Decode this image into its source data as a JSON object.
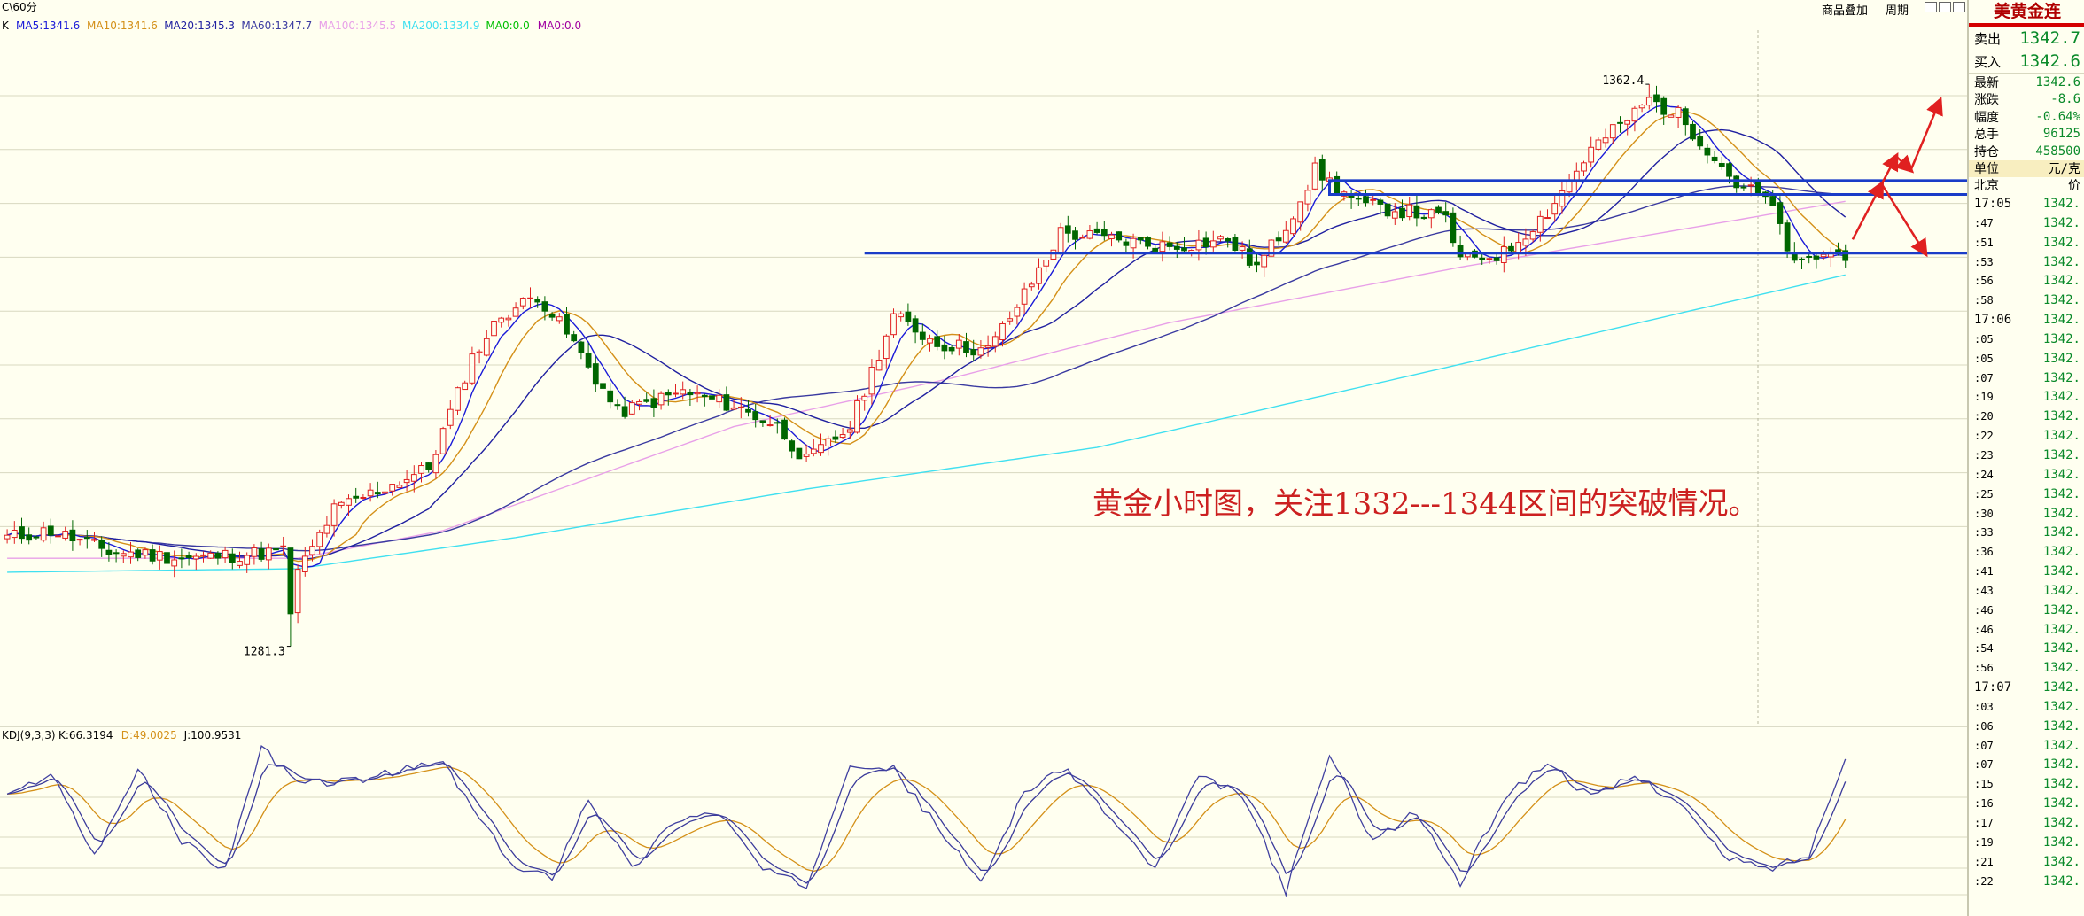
{
  "window": {
    "period_title": "C\\60分",
    "buttons": [
      "商品叠加",
      "周期"
    ]
  },
  "ma_legend": {
    "k": "K",
    "items": [
      {
        "text": "MA5:1341.6",
        "color": "#1a1ad8"
      },
      {
        "text": "MA10:1341.6",
        "color": "#d49018"
      },
      {
        "text": "MA20:1345.3",
        "color": "#2020a0"
      },
      {
        "text": "MA60:1347.7",
        "color": "#3a3aa0"
      },
      {
        "text": "MA100:1345.5",
        "color": "#e8a0e8"
      },
      {
        "text": "MA200:1334.9",
        "color": "#40e0f0"
      },
      {
        "text": "MA0:0.0",
        "color": "#00c000"
      },
      {
        "text": "MA0:0.0",
        "color": "#a000a0"
      }
    ]
  },
  "kdj_legend": {
    "name": "KDJ(9,3,3)",
    "items": [
      {
        "text": "K:66.3194",
        "color": "#000000"
      },
      {
        "text": "D:49.0025",
        "color": "#d49018"
      },
      {
        "text": "J:100.9531",
        "color": "#000000"
      }
    ]
  },
  "annotation": {
    "text": "黄金小时图，关注1332---1344区间的突破情况。",
    "color": "#cc2020"
  },
  "colors": {
    "up": "#e02020",
    "down": "#006600",
    "grid": "#d8d8c0",
    "box": "#1a3cc8",
    "arrow": "#e02020",
    "kdj_k": "#3a3a9a",
    "kdj_d": "#d49018",
    "kdj_j": "#4040a0"
  },
  "side": {
    "title": "美黄金连",
    "quotes": [
      {
        "label": "卖出",
        "value": "1342.7"
      },
      {
        "label": "买入",
        "value": "1342.6"
      }
    ],
    "stats": [
      {
        "label": "最新",
        "value": "1342.6"
      },
      {
        "label": "涨跌",
        "value": "-8.6"
      },
      {
        "label": "幅度",
        "value": "-0.64%"
      },
      {
        "label": "总手",
        "value": "96125"
      },
      {
        "label": "持仓",
        "value": "458500"
      },
      {
        "label": "单位",
        "value": "元/克"
      }
    ],
    "tick_header": {
      "left": "北京",
      "right": "价"
    },
    "ticks": [
      {
        "t": "17:05",
        "p": "1342."
      },
      {
        "t": ":47",
        "p": "1342."
      },
      {
        "t": ":51",
        "p": "1342."
      },
      {
        "t": ":53",
        "p": "1342."
      },
      {
        "t": ":56",
        "p": "1342."
      },
      {
        "t": ":58",
        "p": "1342."
      },
      {
        "t": "17:06",
        "p": "1342."
      },
      {
        "t": ":05",
        "p": "1342."
      },
      {
        "t": ":05",
        "p": "1342."
      },
      {
        "t": ":07",
        "p": "1342."
      },
      {
        "t": ":19",
        "p": "1342."
      },
      {
        "t": ":20",
        "p": "1342."
      },
      {
        "t": ":22",
        "p": "1342."
      },
      {
        "t": ":23",
        "p": "1342."
      },
      {
        "t": ":24",
        "p": "1342."
      },
      {
        "t": ":25",
        "p": "1342."
      },
      {
        "t": ":30",
        "p": "1342."
      },
      {
        "t": ":33",
        "p": "1342."
      },
      {
        "t": ":36",
        "p": "1342."
      },
      {
        "t": ":41",
        "p": "1342."
      },
      {
        "t": ":43",
        "p": "1342."
      },
      {
        "t": ":46",
        "p": "1342."
      },
      {
        "t": ":46",
        "p": "1342."
      },
      {
        "t": ":54",
        "p": "1342."
      },
      {
        "t": ":56",
        "p": "1342."
      },
      {
        "t": "17:07",
        "p": "1342."
      },
      {
        "t": ":03",
        "p": "1342."
      },
      {
        "t": ":06",
        "p": "1342."
      },
      {
        "t": ":07",
        "p": "1342."
      },
      {
        "t": ":07",
        "p": "1342."
      },
      {
        "t": ":15",
        "p": "1342."
      },
      {
        "t": ":16",
        "p": "1342."
      },
      {
        "t": ":17",
        "p": "1342."
      },
      {
        "t": ":19",
        "p": "1342."
      },
      {
        "t": ":21",
        "p": "1342."
      },
      {
        "t": ":22",
        "p": "1342."
      }
    ]
  },
  "chart_data": {
    "type": "candlestick",
    "title": "",
    "xlabel": "",
    "ylabel": "",
    "ylim": [
      1270,
      1372
    ],
    "annotations": [
      {
        "text": "1362.4",
        "value": 1362.4,
        "bar": 226,
        "kind": "high"
      },
      {
        "text": "1281.3",
        "value": 1281.3,
        "bar": 39,
        "kind": "low"
      }
    ],
    "keypoints": [
      {
        "bar": 0,
        "close": 1297
      },
      {
        "bar": 6,
        "close": 1298
      },
      {
        "bar": 14,
        "close": 1295
      },
      {
        "bar": 25,
        "close": 1294
      },
      {
        "bar": 38,
        "close": 1295
      },
      {
        "bar": 39,
        "close": 1290
      },
      {
        "bar": 45,
        "close": 1301
      },
      {
        "bar": 58,
        "close": 1307
      },
      {
        "bar": 64,
        "close": 1323
      },
      {
        "bar": 68,
        "close": 1329
      },
      {
        "bar": 73,
        "close": 1332
      },
      {
        "bar": 78,
        "close": 1325
      },
      {
        "bar": 84,
        "close": 1315
      },
      {
        "bar": 93,
        "close": 1318
      },
      {
        "bar": 100,
        "close": 1316
      },
      {
        "bar": 106,
        "close": 1313
      },
      {
        "bar": 110,
        "close": 1308
      },
      {
        "bar": 116,
        "close": 1313
      },
      {
        "bar": 122,
        "close": 1329
      },
      {
        "bar": 128,
        "close": 1325
      },
      {
        "bar": 135,
        "close": 1324
      },
      {
        "bar": 140,
        "close": 1332
      },
      {
        "bar": 145,
        "close": 1341
      },
      {
        "bar": 152,
        "close": 1340
      },
      {
        "bar": 160,
        "close": 1339
      },
      {
        "bar": 168,
        "close": 1340
      },
      {
        "bar": 172,
        "close": 1336
      },
      {
        "bar": 176,
        "close": 1342
      },
      {
        "bar": 180,
        "close": 1350
      },
      {
        "bar": 186,
        "close": 1345
      },
      {
        "bar": 193,
        "close": 1344
      },
      {
        "bar": 198,
        "close": 1343
      },
      {
        "bar": 200,
        "close": 1337
      },
      {
        "bar": 206,
        "close": 1338
      },
      {
        "bar": 212,
        "close": 1344
      },
      {
        "bar": 218,
        "close": 1353
      },
      {
        "bar": 226,
        "close": 1360
      },
      {
        "bar": 230,
        "close": 1358
      },
      {
        "bar": 235,
        "close": 1352
      },
      {
        "bar": 238,
        "close": 1348
      },
      {
        "bar": 242,
        "close": 1346
      },
      {
        "bar": 244,
        "close": 1342
      },
      {
        "bar": 246,
        "close": 1336
      },
      {
        "bar": 250,
        "close": 1338
      },
      {
        "bar": 253,
        "close": 1338
      }
    ],
    "series": [
      {
        "name": "MA5",
        "value": 1341.6,
        "color": "#1a1ad8"
      },
      {
        "name": "MA10",
        "value": 1341.6,
        "color": "#d49018"
      },
      {
        "name": "MA20",
        "value": 1345.3,
        "color": "#2020a0"
      },
      {
        "name": "MA60",
        "value": 1347.7,
        "color": "#3a3aa0"
      },
      {
        "name": "MA100",
        "value": 1345.5,
        "color": "#e8a0e8"
      },
      {
        "name": "MA200",
        "value": 1334.9,
        "color": "#40e0f0"
      }
    ],
    "ma200_path": [
      {
        "bar": 0,
        "value": 1292
      },
      {
        "bar": 40,
        "value": 1292.5
      },
      {
        "bar": 70,
        "value": 1297
      },
      {
        "bar": 110,
        "value": 1304
      },
      {
        "bar": 150,
        "value": 1310
      },
      {
        "bar": 200,
        "value": 1322
      },
      {
        "bar": 253,
        "value": 1334.9
      }
    ],
    "ma100_path": [
      {
        "bar": 0,
        "value": 1294
      },
      {
        "bar": 40,
        "value": 1294
      },
      {
        "bar": 60,
        "value": 1298
      },
      {
        "bar": 100,
        "value": 1313
      },
      {
        "bar": 130,
        "value": 1320
      },
      {
        "bar": 160,
        "value": 1328
      },
      {
        "bar": 200,
        "value": 1336
      },
      {
        "bar": 253,
        "value": 1345.5
      }
    ],
    "levels": [
      {
        "name": "support",
        "value": 1338
      },
      {
        "name": "box_top",
        "value": 1348.5
      },
      {
        "name": "box_bottom",
        "value": 1346.5
      }
    ],
    "arrows": [
      {
        "from_bar": 254,
        "from_value": 1340,
        "to_bar": 258,
        "to_value": 1348
      },
      {
        "from_bar": 258,
        "from_value": 1348,
        "to_bar": 260,
        "to_value": 1352
      },
      {
        "from_bar": 260,
        "from_value": 1352,
        "to_bar": 262,
        "to_value": 1350
      },
      {
        "from_bar": 262,
        "from_value": 1350,
        "to_bar": 266,
        "to_value": 1360
      },
      {
        "from_bar": 258,
        "from_value": 1348,
        "to_bar": 264,
        "to_value": 1338
      }
    ],
    "kdj": {
      "ylim": [
        -10,
        110
      ],
      "k_value": 66.3194,
      "d_value": 49.0025,
      "j_value": 100.9531,
      "j_points": [
        [
          0,
          70
        ],
        [
          6,
          88
        ],
        [
          12,
          30
        ],
        [
          18,
          90
        ],
        [
          24,
          40
        ],
        [
          30,
          20
        ],
        [
          35,
          105
        ],
        [
          40,
          80
        ],
        [
          48,
          82
        ],
        [
          55,
          90
        ],
        [
          60,
          95
        ],
        [
          65,
          55
        ],
        [
          70,
          20
        ],
        [
          75,
          15
        ],
        [
          80,
          70
        ],
        [
          86,
          20
        ],
        [
          92,
          55
        ],
        [
          98,
          60
        ],
        [
          104,
          20
        ],
        [
          110,
          8
        ],
        [
          116,
          95
        ],
        [
          122,
          90
        ],
        [
          128,
          50
        ],
        [
          134,
          10
        ],
        [
          140,
          75
        ],
        [
          146,
          90
        ],
        [
          152,
          55
        ],
        [
          158,
          20
        ],
        [
          164,
          85
        ],
        [
          170,
          72
        ],
        [
          176,
          5
        ],
        [
          182,
          100
        ],
        [
          188,
          40
        ],
        [
          194,
          60
        ],
        [
          200,
          10
        ],
        [
          206,
          70
        ],
        [
          212,
          95
        ],
        [
          218,
          70
        ],
        [
          224,
          85
        ],
        [
          230,
          68
        ],
        [
          236,
          30
        ],
        [
          242,
          20
        ],
        [
          248,
          30
        ],
        [
          253,
          100
        ]
      ]
    }
  }
}
